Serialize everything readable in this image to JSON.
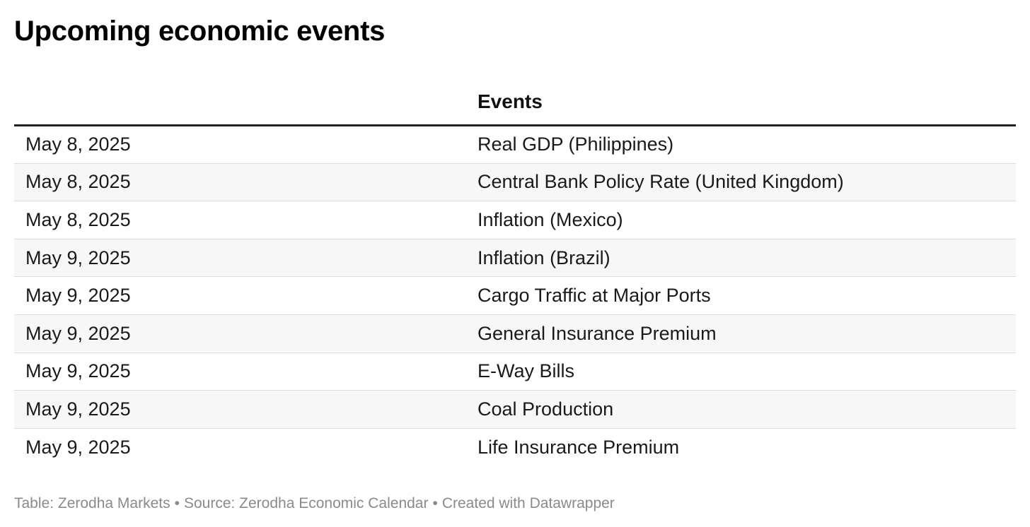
{
  "title": "Upcoming economic events",
  "table": {
    "headers": {
      "date": "",
      "events": "Events"
    },
    "rows": [
      {
        "date": "May 8, 2025",
        "event": "Real GDP (Philippines)"
      },
      {
        "date": "May 8, 2025",
        "event": "Central Bank Policy Rate (United Kingdom)"
      },
      {
        "date": "May 8, 2025",
        "event": "Inflation (Mexico)"
      },
      {
        "date": "May 9, 2025",
        "event": "Inflation (Brazil)"
      },
      {
        "date": "May 9, 2025",
        "event": "Cargo Traffic at Major Ports"
      },
      {
        "date": "May 9, 2025",
        "event": "General Insurance Premium"
      },
      {
        "date": "May 9, 2025",
        "event": "E-Way Bills"
      },
      {
        "date": "May 9, 2025",
        "event": "Coal Production"
      },
      {
        "date": "May 9, 2025",
        "event": "Life Insurance Premium"
      }
    ]
  },
  "footer": {
    "table_credit": "Table: Zerodha Markets",
    "source": "Source: Zerodha Economic Calendar",
    "created_with": "Created with Datawrapper",
    "separator": "•"
  }
}
